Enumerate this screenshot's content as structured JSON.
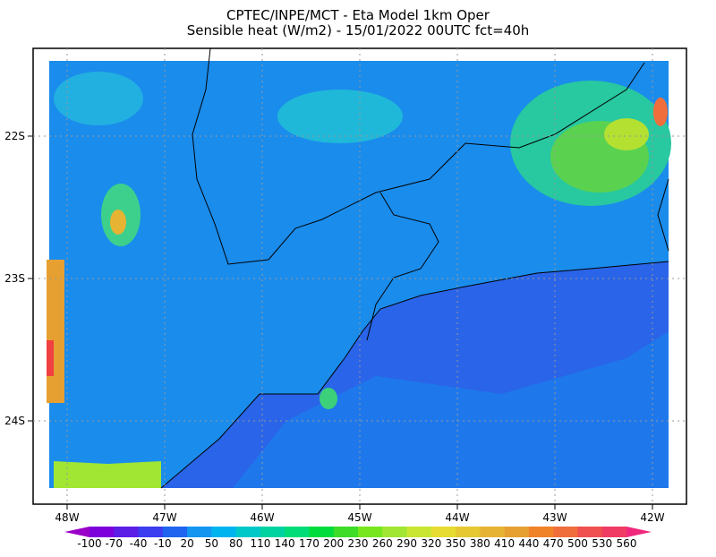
{
  "header": {
    "title": "CPTEC/INPE/MCT -  Eta Model 1km Oper",
    "subtitle": "Sensible heat (W/m2) - 15/01/2022 00UTC fct=40h"
  },
  "map": {
    "lon_labels": [
      "48W",
      "47W",
      "46W",
      "45W",
      "44W",
      "43W",
      "42W"
    ],
    "lat_labels": [
      "22S",
      "23S",
      "24S"
    ]
  },
  "colorbar": {
    "labels": [
      -100,
      -70,
      -40,
      -10,
      20,
      50,
      80,
      110,
      140,
      170,
      200,
      230,
      260,
      290,
      320,
      350,
      380,
      410,
      440,
      470,
      500,
      530,
      560
    ]
  }
}
